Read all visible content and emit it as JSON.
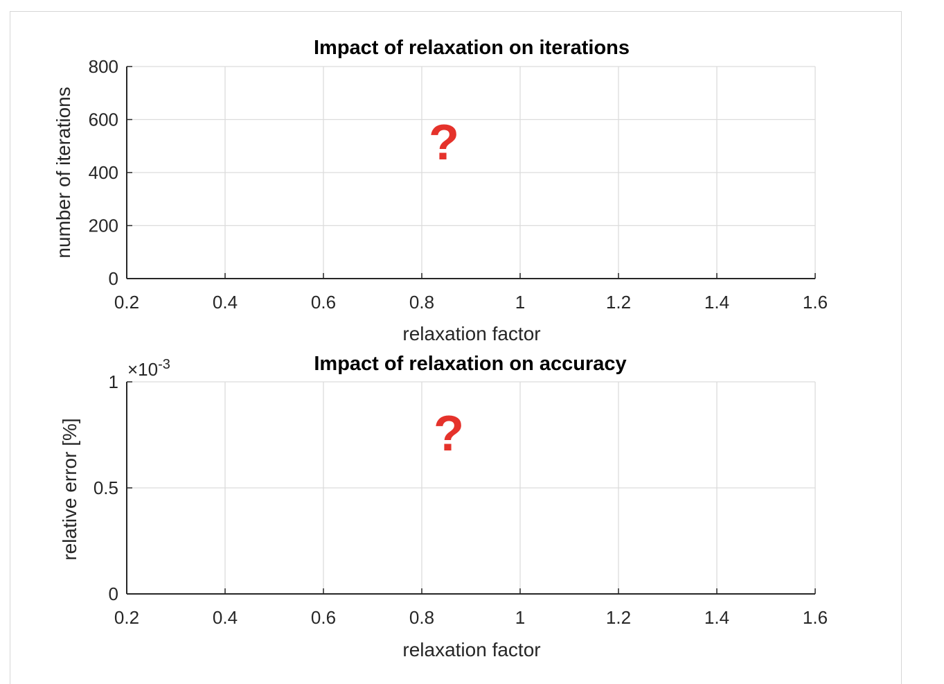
{
  "colors": {
    "grid": "#dcdcdc",
    "axis": "#262626",
    "annotation": "#e5322b"
  },
  "chart_data": [
    {
      "type": "line",
      "title": "Impact of relaxation on iterations",
      "xlabel": "relaxation factor",
      "ylabel": "number of iterations",
      "xlim": [
        0.2,
        1.6
      ],
      "ylim": [
        0,
        800
      ],
      "xticks": [
        "0.2",
        "0.4",
        "0.6",
        "0.8",
        "1",
        "1.2",
        "1.4",
        "1.6"
      ],
      "yticks": [
        "0",
        "200",
        "400",
        "600",
        "800"
      ],
      "grid": true,
      "series": [],
      "annotation": "?"
    },
    {
      "type": "line",
      "title": "Impact of relaxation on accuracy",
      "xlabel": "relaxation factor",
      "ylabel": "relative error [%]",
      "xlim": [
        0.2,
        1.6
      ],
      "ylim": [
        0,
        1
      ],
      "xticks": [
        "0.2",
        "0.4",
        "0.6",
        "0.8",
        "1",
        "1.2",
        "1.4",
        "1.6"
      ],
      "yticks": [
        "0",
        "0.5",
        "1"
      ],
      "exponent_prefix": "×10",
      "exponent": "-3",
      "grid": true,
      "series": [],
      "annotation": "?"
    }
  ]
}
